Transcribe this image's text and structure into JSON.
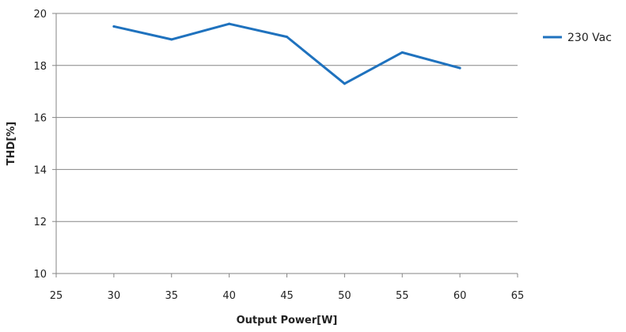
{
  "chart_data": {
    "type": "line",
    "title": "",
    "xlabel": "Output Power[W]",
    "ylabel": "THD[%]",
    "xlim": [
      25,
      65
    ],
    "ylim": [
      10,
      20
    ],
    "xticks": [
      25,
      30,
      35,
      40,
      45,
      50,
      55,
      60,
      65
    ],
    "yticks": [
      10,
      12,
      14,
      16,
      18,
      20
    ],
    "grid": {
      "horizontal": true,
      "vertical": false
    },
    "legend_position": "right",
    "series": [
      {
        "name": "230 Vac",
        "color": "#1f72be",
        "x": [
          30,
          35,
          40,
          45,
          50,
          55,
          60
        ],
        "y": [
          19.5,
          19.0,
          19.6,
          19.1,
          17.3,
          18.5,
          17.9
        ]
      }
    ]
  }
}
